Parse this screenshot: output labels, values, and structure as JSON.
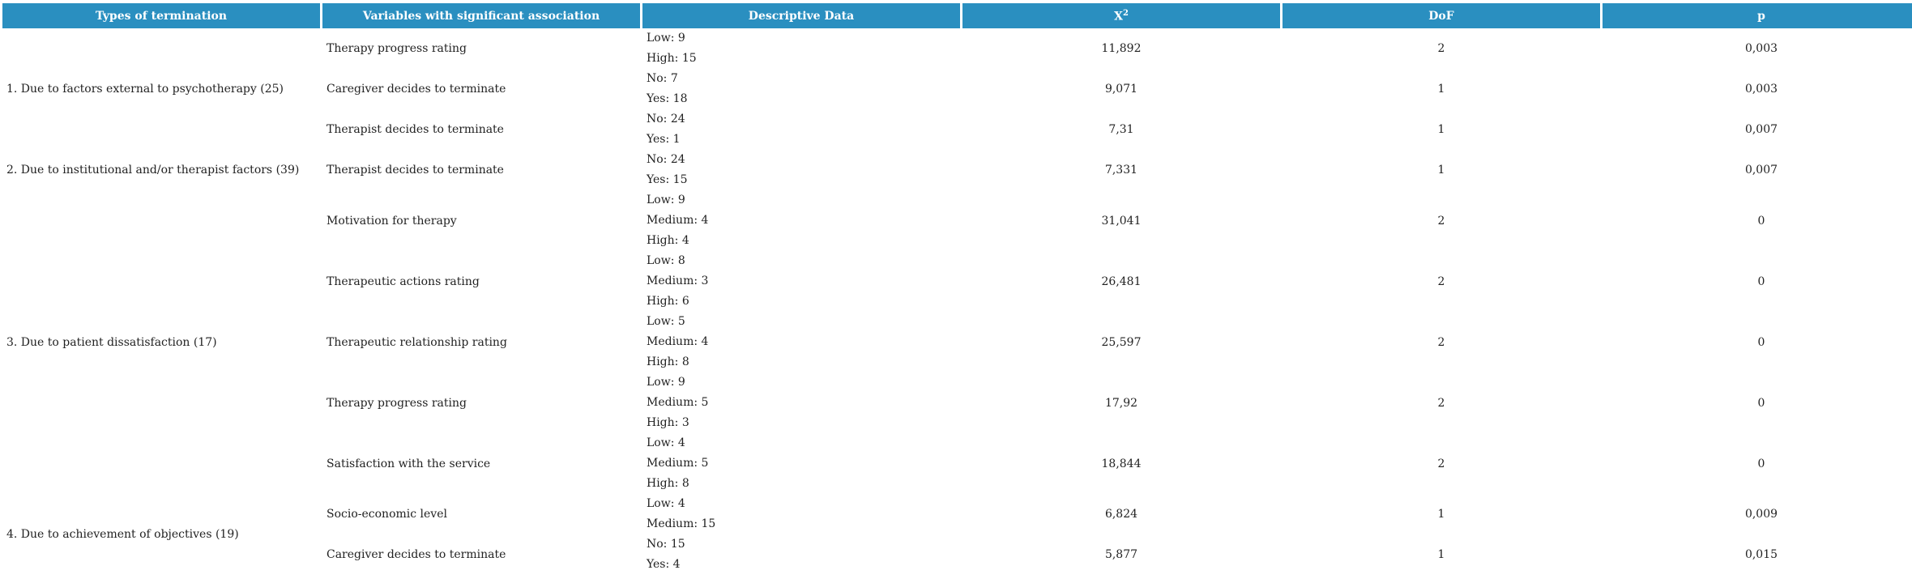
{
  "headers": {
    "type": "Types of termination",
    "var": "Variables with significant association",
    "desc": "Descriptive Data",
    "chi": "X",
    "chi_sup": "2",
    "dof": "DoF",
    "p": "p"
  },
  "groups": [
    {
      "type": "1. Due to factors external to psychotherapy (25)",
      "rows": [
        {
          "var": "Therapy progress rating",
          "desc": [
            "Low: 9",
            "High: 15"
          ],
          "chi": "11,892",
          "dof": "2",
          "p": "0,003"
        },
        {
          "var": "Caregiver decides to terminate",
          "desc": [
            "No: 7",
            "Yes: 18"
          ],
          "chi": "9,071",
          "dof": "1",
          "p": "0,003"
        },
        {
          "var": "Therapist decides to terminate",
          "desc": [
            "No: 24",
            "Yes: 1"
          ],
          "chi": "7,31",
          "dof": "1",
          "p": "0,007"
        }
      ]
    },
    {
      "type": "2. Due to institutional and/or therapist factors (39)",
      "rows": [
        {
          "var": "Therapist decides to terminate",
          "desc": [
            "No: 24",
            "Yes: 15"
          ],
          "chi": "7,331",
          "dof": "1",
          "p": "0,007"
        }
      ]
    },
    {
      "type": "3. Due to patient dissatisfaction (17)",
      "rows": [
        {
          "var": "Motivation for therapy",
          "desc": [
            "Low: 9",
            "Medium: 4",
            "High: 4"
          ],
          "chi": "31,041",
          "dof": "2",
          "p": "0"
        },
        {
          "var": "Therapeutic actions rating",
          "desc": [
            "Low: 8",
            "Medium: 3",
            "High: 6"
          ],
          "chi": "26,481",
          "dof": "2",
          "p": "0"
        },
        {
          "var": "Therapeutic relationship rating",
          "desc": [
            "Low: 5",
            "Medium: 4",
            "High: 8"
          ],
          "chi": "25,597",
          "dof": "2",
          "p": "0"
        },
        {
          "var": "Therapy progress rating",
          "desc": [
            "Low: 9",
            "Medium: 5",
            "High: 3"
          ],
          "chi": "17,92",
          "dof": "2",
          "p": "0"
        },
        {
          "var": "Satisfaction with the service",
          "desc": [
            "Low: 4",
            "Medium: 5",
            "High: 8"
          ],
          "chi": "18,844",
          "dof": "2",
          "p": "0"
        }
      ]
    },
    {
      "type": "4. Due to achievement of objectives (19)",
      "rows": [
        {
          "var": "Socio-economic level",
          "desc": [
            "Low: 4",
            "Medium: 15"
          ],
          "chi": "6,824",
          "dof": "1",
          "p": "0,009"
        },
        {
          "var": "Caregiver decides to terminate",
          "desc": [
            "No: 15",
            "Yes: 4"
          ],
          "chi": "5,877",
          "dof": "1",
          "p": "0,015"
        }
      ]
    }
  ]
}
